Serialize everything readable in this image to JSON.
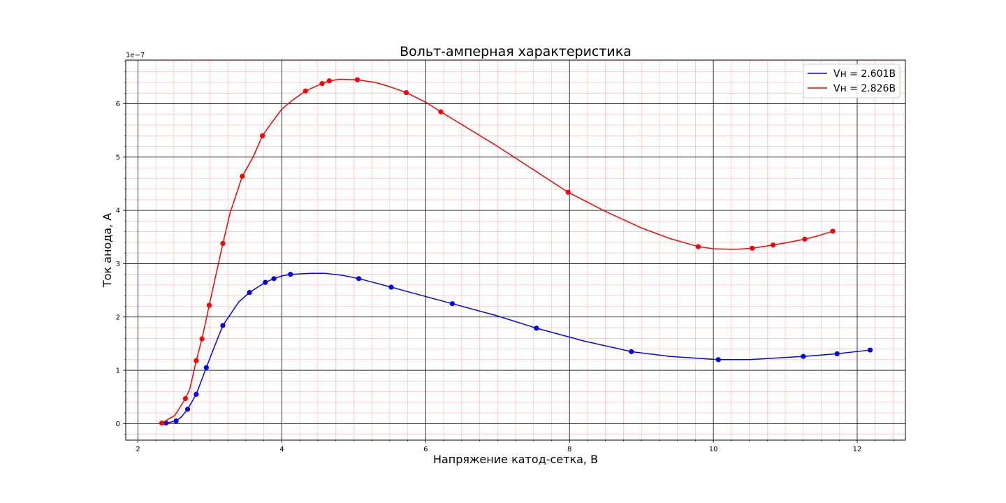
{
  "chart_data": {
    "type": "line",
    "title": "Вольт-амперная характеристика",
    "xlabel": "Напряжение катод-сетка, В",
    "ylabel": "Ток анода, А",
    "y_offset_label": "1e−7",
    "xlim": [
      1.83,
      12.67
    ],
    "ylim": [
      -0.31,
      6.82
    ],
    "x_ticks": [
      2,
      4,
      6,
      8,
      10,
      12
    ],
    "x_tick_labels": [
      "2",
      "4",
      "6",
      "8",
      "10",
      "12"
    ],
    "y_ticks": [
      0,
      1,
      2,
      3,
      4,
      5,
      6
    ],
    "y_tick_labels": [
      "0",
      "1",
      "2",
      "3",
      "4",
      "5",
      "6"
    ],
    "grid": "major black, minor red",
    "legend_position": "top-right",
    "series": [
      {
        "name": "Vн = 2.601В",
        "color": "#0000ff",
        "points": [
          [
            2.39,
            0.01
          ],
          [
            2.53,
            0.05
          ],
          [
            2.69,
            0.27
          ],
          [
            2.81,
            0.55
          ],
          [
            2.95,
            1.05
          ],
          [
            3.18,
            1.84
          ],
          [
            3.55,
            2.46
          ],
          [
            3.77,
            2.65
          ],
          [
            3.89,
            2.72
          ],
          [
            4.12,
            2.8
          ],
          [
            5.07,
            2.72
          ],
          [
            5.52,
            2.56
          ],
          [
            6.37,
            2.25
          ],
          [
            7.54,
            1.79
          ],
          [
            8.86,
            1.35
          ],
          [
            10.07,
            1.2
          ],
          [
            11.25,
            1.26
          ],
          [
            11.72,
            1.31
          ],
          [
            12.18,
            1.38
          ]
        ],
        "curve": [
          [
            2.39,
            0.01
          ],
          [
            2.53,
            0.05
          ],
          [
            2.6,
            0.12
          ],
          [
            2.69,
            0.27
          ],
          [
            2.81,
            0.55
          ],
          [
            2.95,
            1.05
          ],
          [
            3.05,
            1.4
          ],
          [
            3.18,
            1.84
          ],
          [
            3.4,
            2.28
          ],
          [
            3.55,
            2.46
          ],
          [
            3.77,
            2.65
          ],
          [
            3.89,
            2.72
          ],
          [
            4.0,
            2.77
          ],
          [
            4.12,
            2.8
          ],
          [
            4.4,
            2.82
          ],
          [
            4.6,
            2.82
          ],
          [
            4.85,
            2.78
          ],
          [
            5.07,
            2.72
          ],
          [
            5.3,
            2.64
          ],
          [
            5.52,
            2.56
          ],
          [
            5.9,
            2.42
          ],
          [
            6.37,
            2.25
          ],
          [
            7.0,
            2.02
          ],
          [
            7.54,
            1.79
          ],
          [
            8.2,
            1.55
          ],
          [
            8.86,
            1.35
          ],
          [
            9.4,
            1.26
          ],
          [
            10.07,
            1.2
          ],
          [
            10.5,
            1.2
          ],
          [
            11.25,
            1.26
          ],
          [
            11.72,
            1.31
          ],
          [
            12.18,
            1.38
          ]
        ]
      },
      {
        "name": "Vн = 2.826В",
        "color": "#ff0000",
        "points": [
          [
            2.33,
            0.01
          ],
          [
            2.66,
            0.47
          ],
          [
            2.81,
            1.18
          ],
          [
            2.89,
            1.59
          ],
          [
            2.99,
            2.22
          ],
          [
            3.18,
            3.38
          ],
          [
            3.45,
            4.64
          ],
          [
            3.73,
            5.4
          ],
          [
            4.33,
            6.24
          ],
          [
            4.56,
            6.38
          ],
          [
            4.66,
            6.43
          ],
          [
            5.05,
            6.45
          ],
          [
            5.73,
            6.21
          ],
          [
            6.21,
            5.85
          ],
          [
            7.98,
            4.34
          ],
          [
            9.79,
            3.32
          ],
          [
            10.54,
            3.29
          ],
          [
            10.83,
            3.35
          ],
          [
            11.27,
            3.46
          ],
          [
            11.66,
            3.61
          ]
        ],
        "curve": [
          [
            2.33,
            0.01
          ],
          [
            2.51,
            0.15
          ],
          [
            2.66,
            0.47
          ],
          [
            2.72,
            0.65
          ],
          [
            2.81,
            1.18
          ],
          [
            2.89,
            1.59
          ],
          [
            2.99,
            2.22
          ],
          [
            3.18,
            3.38
          ],
          [
            3.28,
            3.95
          ],
          [
            3.45,
            4.64
          ],
          [
            3.6,
            5.0
          ],
          [
            3.73,
            5.4
          ],
          [
            3.85,
            5.63
          ],
          [
            4.0,
            5.9
          ],
          [
            4.15,
            6.07
          ],
          [
            4.33,
            6.24
          ],
          [
            4.56,
            6.38
          ],
          [
            4.66,
            6.43
          ],
          [
            4.8,
            6.46
          ],
          [
            5.05,
            6.45
          ],
          [
            5.3,
            6.4
          ],
          [
            5.5,
            6.32
          ],
          [
            5.73,
            6.21
          ],
          [
            6.0,
            6.03
          ],
          [
            6.21,
            5.85
          ],
          [
            7.0,
            5.2
          ],
          [
            7.98,
            4.34
          ],
          [
            8.5,
            3.98
          ],
          [
            9.0,
            3.67
          ],
          [
            9.4,
            3.47
          ],
          [
            9.79,
            3.32
          ],
          [
            10.0,
            3.28
          ],
          [
            10.3,
            3.27
          ],
          [
            10.54,
            3.29
          ],
          [
            10.83,
            3.35
          ],
          [
            11.0,
            3.39
          ],
          [
            11.27,
            3.46
          ],
          [
            11.45,
            3.52
          ],
          [
            11.66,
            3.61
          ]
        ]
      }
    ]
  }
}
